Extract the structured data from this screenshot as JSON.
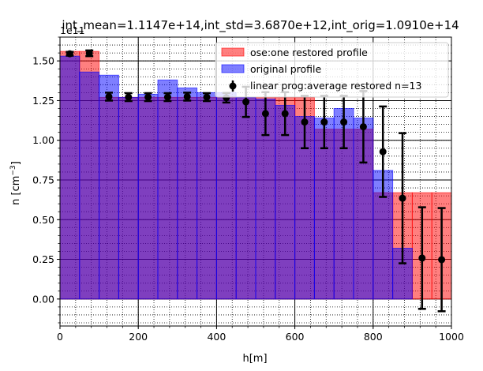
{
  "chart_data": {
    "type": "bar",
    "title": "int_mean=1.1147e+14,int_std=3.6870e+12,int_orig=1.0910e+14",
    "xlabel": "h[m]",
    "ylabel": "n [cm⁻³]",
    "ylabel_base": "n [cm",
    "ylabel_exp": "−3",
    "ylabel_close": "]",
    "offset_text": "1e11",
    "xlim": [
      0,
      1000
    ],
    "ylim": [
      -0.17,
      1.65
    ],
    "y_scale_factor": 100000000000.0,
    "grid": true,
    "legend_position": "upper-right",
    "x_ticks": [
      0,
      200,
      400,
      600,
      800,
      1000
    ],
    "x_tick_labels": [
      "0",
      "200",
      "400",
      "600",
      "800",
      "1000"
    ],
    "y_ticks": [
      0.0,
      0.25,
      0.5,
      0.75,
      1.0,
      1.25,
      1.5
    ],
    "y_tick_labels": [
      "0.00",
      "0.25",
      "0.50",
      "0.75",
      "1.00",
      "1.25",
      "1.50"
    ],
    "bin_edges": [
      0,
      50,
      100,
      150,
      200,
      250,
      300,
      350,
      400,
      450,
      500,
      550,
      600,
      650,
      700,
      750,
      800,
      850,
      900,
      950,
      1000
    ],
    "series": [
      {
        "name": "ose:one restored profile",
        "kind": "bar",
        "color": "#ff0000",
        "alpha": 0.5,
        "values": [
          1.56,
          1.56,
          1.27,
          1.27,
          1.27,
          1.27,
          1.27,
          1.27,
          1.27,
          1.27,
          1.27,
          1.27,
          1.27,
          1.07,
          1.07,
          1.07,
          0.67,
          0.67,
          0.67,
          0.67
        ]
      },
      {
        "name": "original profile",
        "kind": "bar",
        "color": "#0000ff",
        "alpha": 0.5,
        "values": [
          1.53,
          1.43,
          1.41,
          1.27,
          1.29,
          1.38,
          1.33,
          1.3,
          1.3,
          1.27,
          1.26,
          1.22,
          1.15,
          1.14,
          1.2,
          1.14,
          0.81,
          0.32,
          0.0,
          0.0
        ]
      },
      {
        "name": "linear prog:average restored n=13",
        "kind": "errorbar",
        "color": "#000000",
        "x": [
          25,
          75,
          125,
          175,
          225,
          275,
          325,
          375,
          425,
          475,
          525,
          575,
          625,
          675,
          725,
          775,
          825,
          875,
          925,
          975
        ],
        "values": [
          1.545,
          1.548,
          1.275,
          1.272,
          1.272,
          1.272,
          1.275,
          1.272,
          1.268,
          1.242,
          1.168,
          1.168,
          1.115,
          1.115,
          1.115,
          1.085,
          0.928,
          0.635,
          0.258,
          0.248
        ],
        "errors": [
          0.012,
          0.018,
          0.025,
          0.025,
          0.025,
          0.025,
          0.025,
          0.025,
          0.03,
          0.095,
          0.135,
          0.135,
          0.165,
          0.165,
          0.165,
          0.225,
          0.285,
          0.41,
          0.32,
          0.325
        ]
      }
    ]
  }
}
